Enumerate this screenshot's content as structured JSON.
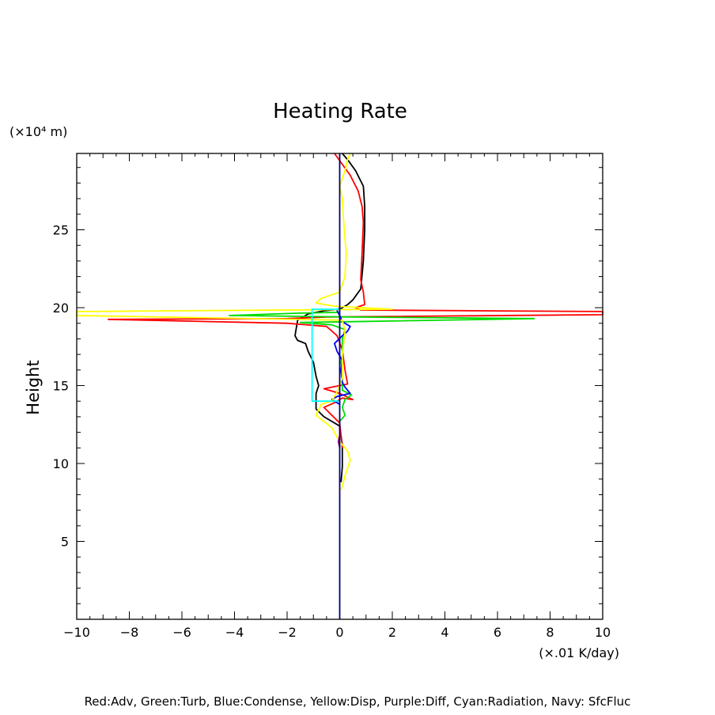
{
  "chart_data": {
    "type": "line",
    "title": "Heating Rate",
    "ylabel": "Height",
    "y_unit": "(×10⁴ m)",
    "x_unit": "(×.01 K/day)",
    "xlim": [
      -10,
      10
    ],
    "ylim": [
      0,
      29.9
    ],
    "xticks": [
      -10,
      -8,
      -6,
      -4,
      -2,
      0,
      2,
      4,
      6,
      8,
      10
    ],
    "xtick_labels": [
      "−10",
      "−8",
      "−6",
      "−4",
      "−2",
      "0",
      "2",
      "4",
      "6",
      "8",
      "10"
    ],
    "yticks": [
      5,
      10,
      15,
      20,
      25
    ],
    "ytick_labels": [
      "5",
      "10",
      "15",
      "20",
      "25"
    ],
    "grid": false,
    "legend_text": "Red:Adv, Green:Turb, Blue:Condense, Yellow:Disp, Purple:Diff, Cyan:Radiation, Navy: SfcFluc",
    "series": [
      {
        "color": "#000000",
        "points": [
          [
            0.05,
            8.8
          ],
          [
            0.1,
            9.8
          ],
          [
            0.1,
            11.2
          ],
          [
            0,
            12.4
          ],
          [
            -0.6,
            13.0
          ],
          [
            -0.9,
            13.5
          ],
          [
            -0.9,
            14.5
          ],
          [
            -0.8,
            15.0
          ],
          [
            -0.9,
            15.6
          ],
          [
            -1.0,
            16.5
          ],
          [
            -1.2,
            17.2
          ],
          [
            -1.3,
            17.7
          ],
          [
            -1.6,
            17.9
          ],
          [
            -1.7,
            18.2
          ],
          [
            -1.6,
            19.2
          ],
          [
            -1.2,
            19.6
          ],
          [
            -0.6,
            19.8
          ],
          [
            0,
            19.9
          ],
          [
            0.3,
            20.2
          ],
          [
            0.5,
            20.5
          ],
          [
            0.8,
            21.2
          ],
          [
            0.9,
            23.0
          ],
          [
            0.95,
            25.0
          ],
          [
            0.95,
            26.5
          ],
          [
            0.9,
            27.8
          ],
          [
            0.6,
            28.8
          ],
          [
            0.3,
            29.5
          ],
          [
            0.1,
            29.9
          ]
        ]
      },
      {
        "color": "#ff0000",
        "points": [
          [
            0.1,
            11.0
          ],
          [
            0,
            12.6
          ],
          [
            -0.6,
            13.6
          ],
          [
            -0.2,
            13.9
          ],
          [
            0.1,
            14.2
          ],
          [
            0.5,
            14.1
          ],
          [
            0,
            14.5
          ],
          [
            -0.6,
            14.8
          ],
          [
            0,
            15.0
          ],
          [
            0.3,
            15.1
          ],
          [
            0.2,
            16.0
          ],
          [
            0.1,
            17.3
          ],
          [
            -0.1,
            18.2
          ],
          [
            -0.5,
            18.8
          ],
          [
            -2.0,
            19.0
          ],
          [
            -8.8,
            19.25
          ],
          [
            -2.0,
            19.3
          ],
          [
            -0.5,
            19.4
          ],
          [
            10,
            19.55
          ],
          [
            10,
            19.75
          ],
          [
            0.8,
            19.85
          ],
          [
            0.6,
            20.0
          ],
          [
            0.95,
            20.2
          ],
          [
            0.9,
            21.0
          ],
          [
            0.8,
            21.8
          ],
          [
            0.85,
            23.5
          ],
          [
            0.9,
            25.5
          ],
          [
            0.85,
            26.5
          ],
          [
            0.7,
            27.5
          ],
          [
            0.4,
            28.5
          ],
          [
            -0.2,
            29.9
          ]
        ]
      },
      {
        "color": "#00dd00",
        "points": [
          [
            0,
            12.7
          ],
          [
            0.2,
            13.1
          ],
          [
            0.1,
            13.6
          ],
          [
            0.2,
            14.1
          ],
          [
            0.45,
            14.4
          ],
          [
            0.1,
            14.7
          ],
          [
            0.1,
            15.0
          ],
          [
            0.1,
            15.9
          ],
          [
            0.05,
            16.5
          ],
          [
            0.1,
            17.0
          ],
          [
            0.1,
            18.0
          ],
          [
            0.2,
            18.6
          ],
          [
            -0.3,
            18.9
          ],
          [
            -1.5,
            19.05
          ],
          [
            0.5,
            19.1
          ],
          [
            7.4,
            19.3
          ],
          [
            0.5,
            19.4
          ],
          [
            -4.2,
            19.5
          ],
          [
            -1.5,
            19.65
          ],
          [
            0,
            19.7
          ]
        ]
      },
      {
        "color": "#0000ff",
        "points": [
          [
            0,
            13.8
          ],
          [
            -0.3,
            14.1
          ],
          [
            -0.1,
            14.3
          ],
          [
            0.4,
            14.5
          ],
          [
            0.2,
            14.9
          ],
          [
            0.1,
            15.2
          ],
          [
            0.05,
            16.0
          ],
          [
            0.1,
            16.6
          ],
          [
            -0.1,
            17.2
          ],
          [
            -0.2,
            17.7
          ],
          [
            0.1,
            18.2
          ],
          [
            0.3,
            18.5
          ],
          [
            0.4,
            18.8
          ],
          [
            0.1,
            19.1
          ],
          [
            0,
            19.5
          ],
          [
            -0.1,
            19.8
          ],
          [
            0,
            20.0
          ]
        ]
      },
      {
        "color": "#ffff00",
        "points": [
          [
            0.05,
            8.3
          ],
          [
            0.2,
            9.2
          ],
          [
            0.4,
            10.2
          ],
          [
            0.3,
            10.8
          ],
          [
            0,
            11.4
          ],
          [
            -0.3,
            12.3
          ],
          [
            -0.9,
            13.1
          ],
          [
            -0.7,
            13.8
          ],
          [
            -0.3,
            14.0
          ],
          [
            -0.1,
            14.6
          ],
          [
            0.1,
            15.5
          ],
          [
            0.1,
            17.0
          ],
          [
            0.2,
            18.5
          ],
          [
            0.1,
            19.2
          ],
          [
            -10,
            19.5
          ],
          [
            -10,
            19.75
          ],
          [
            2.0,
            19.9
          ],
          [
            -0.2,
            20.1
          ],
          [
            -0.9,
            20.3
          ],
          [
            -0.7,
            20.6
          ],
          [
            0,
            21.0
          ],
          [
            0.2,
            22.0
          ],
          [
            0.25,
            23.5
          ],
          [
            0.15,
            25.5
          ],
          [
            0.1,
            27.0
          ],
          [
            0,
            27.8
          ],
          [
            0.2,
            28.8
          ],
          [
            0.3,
            29.5
          ],
          [
            0.4,
            29.9
          ]
        ]
      },
      {
        "color": "#800080",
        "points": [
          [
            0,
            11.0
          ],
          [
            -0.05,
            11.4
          ],
          [
            0,
            11.8
          ]
        ]
      },
      {
        "color": "#00ffff",
        "points": [
          [
            0,
            14.0
          ],
          [
            -1.05,
            14.0
          ],
          [
            -1.05,
            19.9
          ],
          [
            0,
            19.9
          ]
        ]
      },
      {
        "color": "#000080",
        "points": [
          [
            0,
            0
          ],
          [
            0,
            29.9
          ]
        ]
      }
    ]
  }
}
